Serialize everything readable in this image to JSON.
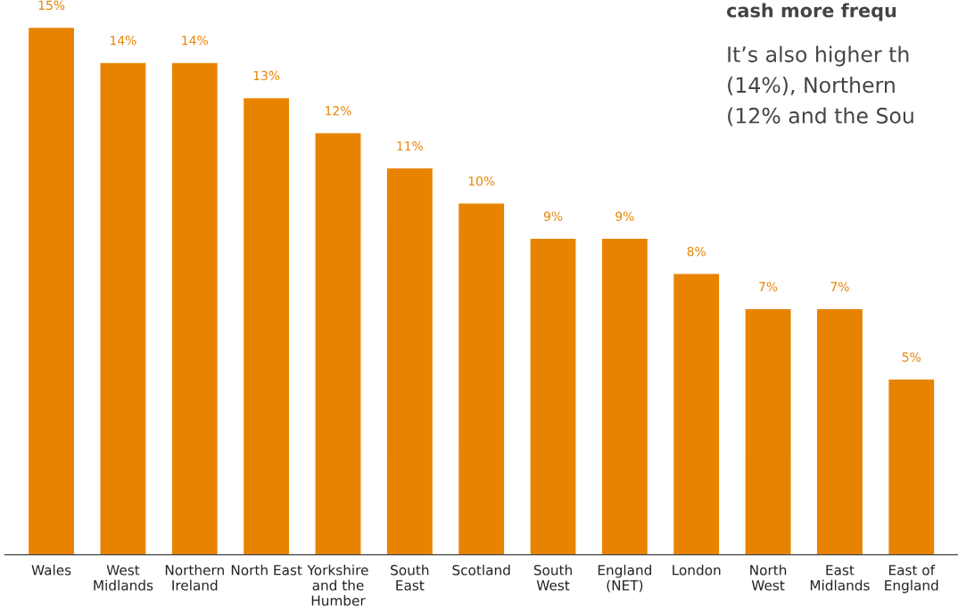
{
  "chart_data": {
    "type": "bar",
    "categories": [
      "Wales",
      "West\nMidlands",
      "Northern\nIreland",
      "North East",
      "Yorkshire\nand the\nHumber",
      "South\nEast",
      "Scotland",
      "South\nWest",
      "England\n(NET)",
      "London",
      "North\nWest",
      "East\nMidlands",
      "East of\nEngland"
    ],
    "values": [
      15,
      14,
      14,
      13,
      12,
      11,
      10,
      9,
      9,
      8,
      7,
      7,
      5
    ],
    "value_labels": [
      "15%",
      "14%",
      "14%",
      "13%",
      "12%",
      "11%",
      "10%",
      "9%",
      "9%",
      "8%",
      "7%",
      "7%",
      "5%"
    ],
    "color": "#e88300",
    "grid": false,
    "annotations": [
      "cash more frequ",
      "It’s also higher th",
      "(14%), Northern",
      "(12% and the Sou"
    ]
  }
}
